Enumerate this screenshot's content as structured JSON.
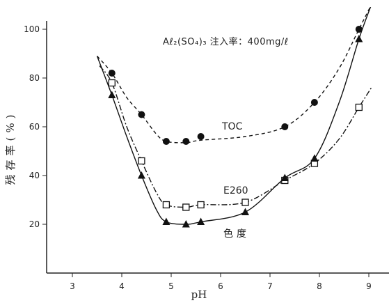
{
  "chart_data": {
    "type": "line",
    "xlabel": "pH",
    "ylabel": "残存率(%)",
    "annotation": "Aℓ₂(SO₄)₃ 注入率：400mg/ℓ",
    "xlim": [
      2.5,
      9.5
    ],
    "ylim": [
      0,
      105
    ],
    "x_ticks": [
      3,
      4,
      5,
      6,
      7,
      8,
      9
    ],
    "y_ticks": [
      20,
      40,
      60,
      80,
      100
    ],
    "grid": false,
    "series": [
      {
        "name": "TOC",
        "marker": "filled-circle",
        "line_style": "dashed",
        "points": [
          [
            3.8,
            82
          ],
          [
            4.4,
            65
          ],
          [
            4.9,
            54
          ],
          [
            5.3,
            54
          ],
          [
            5.6,
            56
          ],
          [
            7.3,
            60
          ],
          [
            7.9,
            70
          ],
          [
            8.8,
            100
          ]
        ],
        "curve": [
          [
            3.5,
            89
          ],
          [
            3.8,
            82
          ],
          [
            4.1,
            72
          ],
          [
            4.4,
            65
          ],
          [
            4.7,
            57
          ],
          [
            4.9,
            54
          ],
          [
            5.3,
            53.5
          ],
          [
            5.6,
            54.5
          ],
          [
            6.5,
            56
          ],
          [
            7.3,
            60
          ],
          [
            7.9,
            70
          ],
          [
            8.4,
            84
          ],
          [
            8.8,
            100
          ],
          [
            9.1,
            112
          ]
        ]
      },
      {
        "name": "E260",
        "marker": "open-square",
        "line_style": "dash-dot",
        "points": [
          [
            3.8,
            78
          ],
          [
            4.4,
            46
          ],
          [
            4.9,
            28
          ],
          [
            5.3,
            27
          ],
          [
            5.6,
            28
          ],
          [
            6.5,
            29
          ],
          [
            7.3,
            38
          ],
          [
            7.9,
            45
          ],
          [
            8.8,
            68
          ]
        ],
        "curve": [
          [
            3.55,
            85
          ],
          [
            3.8,
            78
          ],
          [
            4.1,
            60
          ],
          [
            4.4,
            46
          ],
          [
            4.7,
            33
          ],
          [
            4.9,
            28
          ],
          [
            5.3,
            27
          ],
          [
            5.6,
            28
          ],
          [
            6.5,
            29
          ],
          [
            7.3,
            38
          ],
          [
            7.9,
            45
          ],
          [
            8.4,
            55
          ],
          [
            8.8,
            68
          ],
          [
            9.05,
            76
          ]
        ]
      },
      {
        "name": "色度",
        "marker": "filled-triangle",
        "line_style": "solid",
        "points": [
          [
            3.8,
            73
          ],
          [
            4.4,
            40
          ],
          [
            4.9,
            21
          ],
          [
            5.3,
            20
          ],
          [
            5.6,
            21
          ],
          [
            6.5,
            25
          ],
          [
            7.3,
            39
          ],
          [
            7.9,
            47
          ],
          [
            8.8,
            96
          ]
        ],
        "curve": [
          [
            3.5,
            89
          ],
          [
            3.8,
            73
          ],
          [
            4.1,
            56
          ],
          [
            4.4,
            40
          ],
          [
            4.7,
            26
          ],
          [
            4.9,
            21
          ],
          [
            5.3,
            20
          ],
          [
            5.6,
            21
          ],
          [
            6.5,
            25
          ],
          [
            7.3,
            39
          ],
          [
            7.9,
            47
          ],
          [
            8.4,
            70
          ],
          [
            8.8,
            96
          ],
          [
            9.05,
            110
          ]
        ]
      }
    ]
  }
}
